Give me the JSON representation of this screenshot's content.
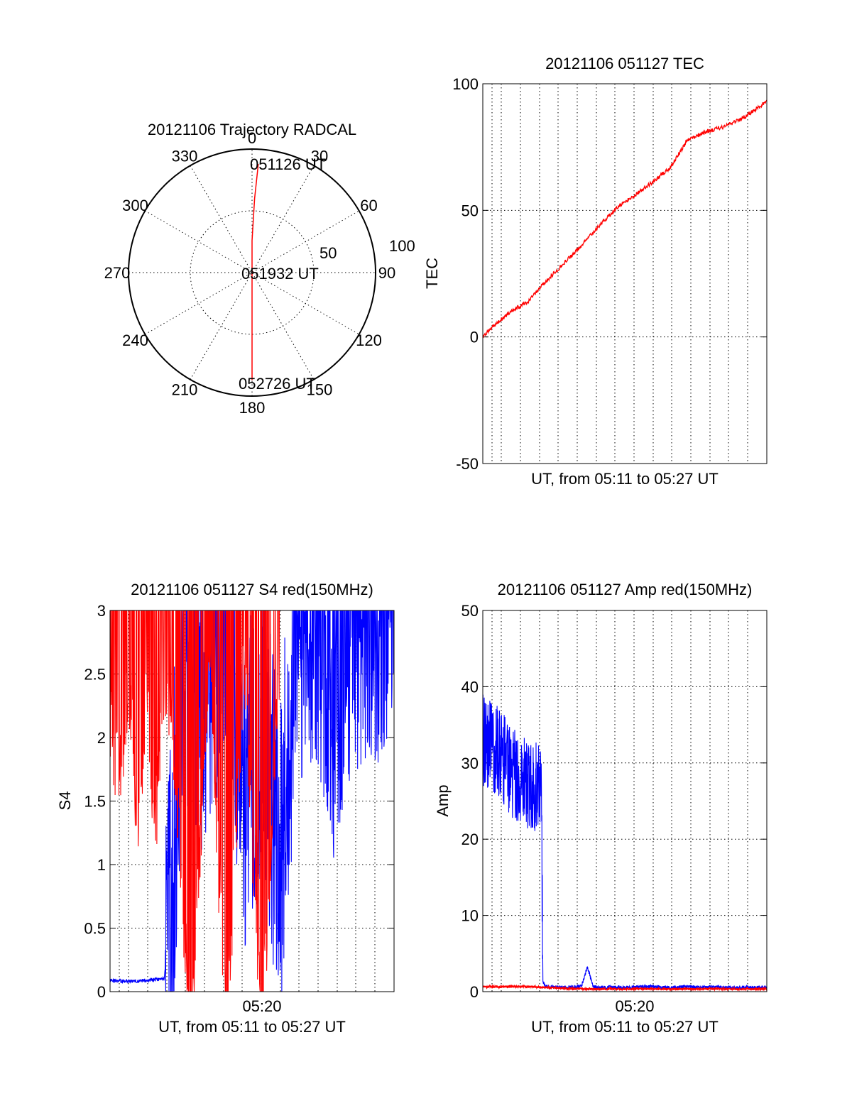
{
  "chart_data": [
    {
      "type": "polar",
      "title": "20121106 Trajectory RADCAL",
      "angle_ticks": [
        "0",
        "30",
        "60",
        "90",
        "120",
        "150",
        "180",
        "210",
        "240",
        "270",
        "300",
        "330"
      ],
      "radius_ticks": [
        "50",
        "100"
      ],
      "radius_range": [
        0,
        100
      ],
      "grid": true,
      "series": [
        {
          "color": "#ff0000",
          "points": [
            [
              3.3,
              88
            ],
            [
              2,
              60
            ],
            [
              0,
              26
            ],
            [
              180,
              0
            ],
            [
              180,
              20
            ],
            [
              180,
              50
            ],
            [
              180,
              87
            ]
          ]
        }
      ],
      "annotations": [
        "051126 UT",
        "051932 UT",
        "052726 UT"
      ]
    },
    {
      "type": "line",
      "title": "20121106 051127 TEC",
      "xlabel": "UT, from 05:11 to 05:27 UT",
      "ylabel": "TEC",
      "xlim": [
        "05:11:27",
        "05:27:26"
      ],
      "ylim": [
        -50,
        100
      ],
      "y_ticks": [
        "-50",
        "0",
        "50",
        "100"
      ],
      "grid": true,
      "series": [
        {
          "color": "#ff0000",
          "x": [
            "05:11:27",
            "05:12:00",
            "05:13:00",
            "05:14:00",
            "05:15:00",
            "05:16:00",
            "05:17:00",
            "05:18:00",
            "05:19:00",
            "05:20:00",
            "05:21:00",
            "05:21:30",
            "05:22:00",
            "05:23:00",
            "05:24:00",
            "05:25:00",
            "05:26:00",
            "05:27:26"
          ],
          "y": [
            0,
            4,
            10,
            14,
            22,
            29,
            36,
            44,
            51,
            56,
            61,
            64,
            67,
            78,
            81,
            83,
            86,
            93
          ]
        }
      ]
    },
    {
      "type": "line",
      "title": "20121106 051127 S4 red(150MHz)",
      "xlabel": "UT, from 05:11 to 05:27 UT",
      "ylabel": "S4",
      "xlim": [
        "05:11:27",
        "05:27:26"
      ],
      "ylim": [
        0,
        3
      ],
      "x_ticks": [
        "05:20"
      ],
      "y_ticks": [
        "0",
        "0.5",
        "1",
        "1.5",
        "2",
        "2.5",
        "3"
      ],
      "grid": true,
      "series": [
        {
          "color": "#0000ff",
          "x": [
            "05:11:27",
            "05:12:30",
            "05:13:30",
            "05:14:30",
            "05:15:00",
            "05:15:30",
            "05:16:00",
            "05:17:00",
            "05:18:00",
            "05:19:00",
            "05:20:00",
            "05:21:00",
            "05:22:00",
            "05:23:00",
            "05:24:00",
            "05:25:00",
            "05:26:00",
            "05:27:26"
          ],
          "y": [
            0.09,
            0.08,
            0.09,
            0.1,
            1.0,
            2.4,
            2.0,
            2.4,
            3.0,
            1.5,
            2.0,
            0.9,
            2.8,
            3.0,
            2.2,
            2.9,
            3.0,
            3.0
          ]
        },
        {
          "color": "#ff0000",
          "x": [
            "05:11:27",
            "05:12:00",
            "05:12:30",
            "05:13:00",
            "05:13:30",
            "05:14:00",
            "05:14:30",
            "05:15:00",
            "05:16:00",
            "05:17:00",
            "05:18:00",
            "05:19:00",
            "05:20:00",
            "05:21:00"
          ],
          "y": [
            2.5,
            2.0,
            2.8,
            1.7,
            2.6,
            1.6,
            2.9,
            2.4,
            0.0,
            3.0,
            0.0,
            3.0,
            0.0,
            3.0
          ]
        }
      ]
    },
    {
      "type": "line",
      "title": "20121106 051127 Amp red(150MHz)",
      "xlabel": "UT, from 05:11 to 05:27 UT",
      "ylabel": "Amp",
      "xlim": [
        "05:11:27",
        "05:27:26"
      ],
      "ylim": [
        0,
        50
      ],
      "x_ticks": [
        "05:20"
      ],
      "y_ticks": [
        "0",
        "10",
        "20",
        "30",
        "40",
        "50"
      ],
      "grid": true,
      "series": [
        {
          "color": "#0000ff",
          "x": [
            "05:11:27",
            "05:12:00",
            "05:12:30",
            "05:13:00",
            "05:13:30",
            "05:14:00",
            "05:14:30",
            "05:14:45",
            "05:14:50",
            "05:15:00",
            "05:16:00",
            "05:17:00",
            "05:17:20",
            "05:17:40",
            "05:18:00",
            "05:19:00",
            "05:20:00",
            "05:21:00",
            "05:22:00",
            "05:23:00",
            "05:24:00",
            "05:25:00",
            "05:26:00",
            "05:27:26"
          ],
          "y": [
            33,
            32,
            31,
            29,
            28,
            27,
            27,
            26,
            1.0,
            0.4,
            0.3,
            0.4,
            3.0,
            0.4,
            0.3,
            0.3,
            0.3,
            0.4,
            0.3,
            0.4,
            0.3,
            0.3,
            0.3,
            0.3
          ]
        },
        {
          "color": "#ff0000",
          "x": [
            "05:11:27",
            "05:13:00",
            "05:14:00",
            "05:15:00",
            "05:16:00",
            "05:17:00",
            "05:18:00",
            "05:20:00",
            "05:22:00",
            "05:24:00",
            "05:27:26"
          ],
          "y": [
            0.5,
            0.5,
            0.5,
            0.4,
            0.3,
            0.2,
            0.2,
            0.2,
            0.2,
            0.2,
            0.2
          ]
        }
      ]
    }
  ]
}
